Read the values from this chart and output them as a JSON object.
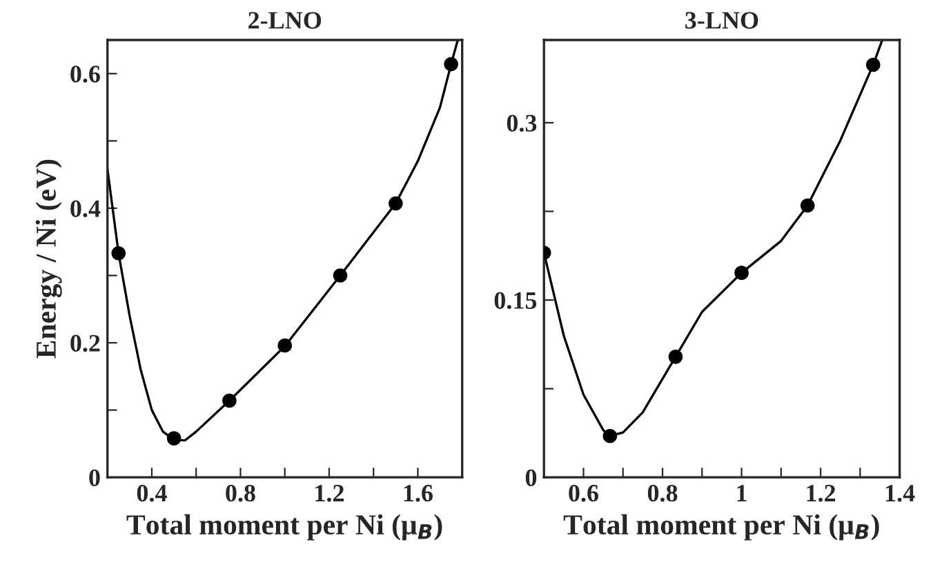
{
  "chart_data": [
    {
      "type": "scatter",
      "title": "2-LNO",
      "xlabel": "Total moment per Ni (μ$_{B}$)",
      "ylabel": "Energy / Ni (eV)",
      "xlim": [
        0.2,
        1.8
      ],
      "ylim": [
        0,
        0.65
      ],
      "xticks": [
        0.4,
        {
          "value": 0.6,
          "label": null
        },
        0.8,
        {
          "value": 1.0,
          "label": null
        },
        1.2,
        {
          "value": 1.4,
          "label": null
        },
        1.6
      ],
      "yticks": [
        0,
        {
          "value": 0.1,
          "label": null
        },
        0.2,
        {
          "value": 0.3,
          "label": null
        },
        0.4,
        {
          "value": 0.5,
          "label": null
        },
        0.6
      ],
      "grid": false,
      "legend": false,
      "series": [
        {
          "type": "line",
          "color": "#000000",
          "marker": "none",
          "line_style": "solid",
          "x": [
            0.2,
            0.25,
            0.3,
            0.35,
            0.4,
            0.45,
            0.5,
            0.55,
            0.6,
            0.75,
            1.0,
            1.25,
            1.5,
            1.6,
            1.7,
            1.75,
            1.78
          ],
          "values": [
            0.458,
            0.333,
            0.24,
            0.16,
            0.1,
            0.068,
            0.056,
            0.055,
            0.068,
            0.114,
            0.195,
            0.3,
            0.407,
            0.47,
            0.55,
            0.614,
            0.65
          ]
        },
        {
          "color": "#000000",
          "marker": "circle",
          "x": [
            0.25,
            0.5,
            0.75,
            1.0,
            1.25,
            1.5,
            1.75
          ],
          "values": [
            0.333,
            0.058,
            0.114,
            0.196,
            0.3,
            0.407,
            0.614
          ]
        }
      ]
    },
    {
      "type": "scatter",
      "title": "3-LNO",
      "xlabel": "Total moment per Ni (μ$_{B}$)",
      "xlim": [
        0.5,
        1.4
      ],
      "ylim": [
        0,
        0.37
      ],
      "xticks": [
        {
          "value": 0.5,
          "label": null
        },
        0.6,
        {
          "value": 0.7,
          "label": null
        },
        0.8,
        {
          "value": 0.9,
          "label": null
        },
        {
          "value": 1.0,
          "label": "1"
        },
        {
          "value": 1.1,
          "label": null
        },
        1.2,
        {
          "value": 1.3,
          "label": null
        },
        1.4
      ],
      "yticks": [
        0,
        {
          "value": 0.075,
          "label": null
        },
        0.15,
        {
          "value": 0.225,
          "label": null
        },
        0.3
      ],
      "grid": false,
      "legend": false,
      "series": [
        {
          "type": "line",
          "color": "#000000",
          "marker": "none",
          "line_style": "solid",
          "x": [
            0.5,
            0.55,
            0.6,
            0.65,
            0.667,
            0.7,
            0.75,
            0.833,
            0.9,
            1.0,
            1.1,
            1.167,
            1.25,
            1.333,
            1.356
          ],
          "values": [
            0.19,
            0.12,
            0.07,
            0.04,
            0.035,
            0.038,
            0.055,
            0.102,
            0.14,
            0.173,
            0.2,
            0.23,
            0.285,
            0.349,
            0.37
          ]
        },
        {
          "color": "#000000",
          "marker": "circle",
          "x": [
            0.5,
            0.667,
            0.833,
            1.0,
            1.167,
            1.333
          ],
          "values": [
            0.19,
            0.035,
            0.102,
            0.173,
            0.23,
            0.349
          ]
        }
      ]
    }
  ]
}
